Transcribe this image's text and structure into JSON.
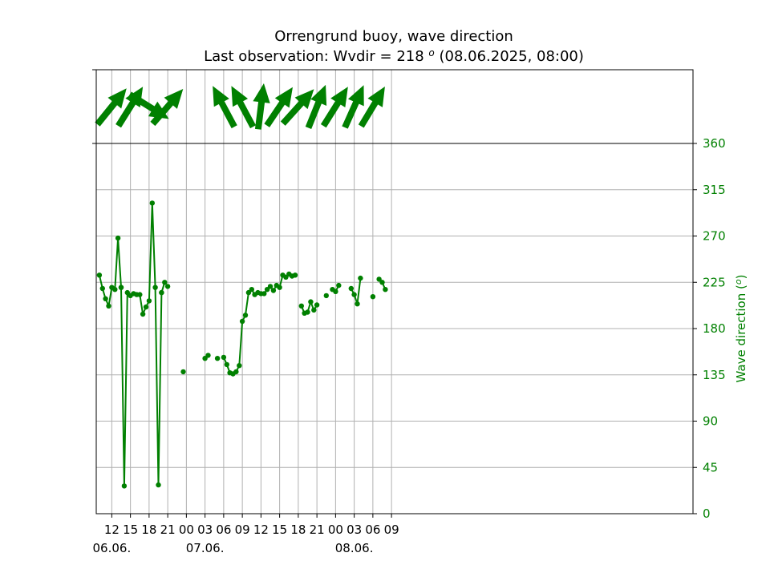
{
  "chart_data": {
    "type": "line",
    "title": "Orrengrund buoy, wave direction",
    "subtitle_prefix": "Last observation: Wvdir = 218 ",
    "subtitle_degree": "o",
    "subtitle_suffix": " (08.06.2025, 08:00)",
    "ylabel": "Wave direction (",
    "ylabel_degree": "o",
    "ylabel_suffix": ")",
    "ylim": [
      0,
      360
    ],
    "x_unit": "hours after 06.06. 00:00",
    "xlim": [
      9.5,
      105.5
    ],
    "y_ticks": [
      0,
      45,
      90,
      135,
      180,
      225,
      270,
      315,
      360
    ],
    "x_ticks": [
      {
        "h": 12,
        "label": "12"
      },
      {
        "h": 15,
        "label": "15"
      },
      {
        "h": 18,
        "label": "18"
      },
      {
        "h": 21,
        "label": "21"
      },
      {
        "h": 24,
        "label": "00"
      },
      {
        "h": 27,
        "label": "03"
      },
      {
        "h": 30,
        "label": "06"
      },
      {
        "h": 33,
        "label": "09"
      },
      {
        "h": 36,
        "label": "12"
      },
      {
        "h": 39,
        "label": "15"
      },
      {
        "h": 42,
        "label": "18"
      },
      {
        "h": 45,
        "label": "21"
      },
      {
        "h": 48,
        "label": "00"
      },
      {
        "h": 51,
        "label": "03"
      },
      {
        "h": 54,
        "label": "06"
      },
      {
        "h": 57,
        "label": "09"
      }
    ],
    "date_labels": [
      {
        "h": 12,
        "label": "06.06."
      },
      {
        "h": 27,
        "label": "07.06."
      },
      {
        "h": 51,
        "label": "08.06."
      }
    ],
    "grid": true,
    "color": "#008000",
    "series": [
      {
        "x": [
          10,
          10.5,
          11,
          11.5,
          12,
          12.5,
          13,
          13.5
        ],
        "y": [
          232,
          219,
          209,
          202,
          220,
          218,
          268,
          220
        ]
      },
      {
        "x": [
          13.5,
          14,
          14.5,
          15,
          15.5,
          16,
          16.5,
          17,
          17.5,
          18,
          18.5,
          19,
          19.5,
          20
        ],
        "y": [
          220,
          27,
          215,
          212,
          214,
          213,
          213,
          194,
          201,
          207,
          302,
          220,
          28,
          215
        ]
      },
      {
        "x": [
          20,
          20.5
        ],
        "y": [
          215,
          225
        ]
      },
      {
        "x": [
          21
        ],
        "y": [
          221
        ]
      },
      {
        "x": [
          23.5
        ],
        "y": [
          138
        ]
      },
      {
        "x": [
          27,
          27.5
        ],
        "y": [
          151,
          154
        ]
      },
      {
        "x": [
          29
        ],
        "y": [
          151
        ]
      },
      {
        "x": [
          30,
          30.5,
          31,
          31.5,
          32,
          32.5,
          33,
          33.5,
          34,
          34.5,
          35,
          35.5,
          36,
          36.5,
          37,
          37.5,
          38,
          38.5,
          39,
          39.5,
          40,
          40.5,
          41,
          41.5
        ],
        "y": [
          152,
          145,
          137,
          136,
          138,
          144,
          187,
          193,
          215,
          218,
          213,
          215,
          214,
          214,
          218,
          221,
          217,
          222,
          220,
          232,
          230,
          233,
          231,
          232
        ]
      },
      {
        "x": [
          42.5,
          43,
          43.5,
          44,
          44.5,
          45
        ],
        "y": [
          202,
          195,
          196,
          206,
          198,
          203
        ]
      },
      {
        "x": [
          46.5
        ],
        "y": [
          212
        ]
      },
      {
        "x": [
          47.5,
          48,
          48.5
        ],
        "y": [
          218,
          216,
          222
        ]
      },
      {
        "x": [
          50.5,
          51,
          51.5,
          52
        ],
        "y": [
          219,
          213,
          204,
          229
        ]
      },
      {
        "x": [
          54
        ],
        "y": [
          211
        ]
      },
      {
        "x": [
          55,
          55.5,
          56
        ],
        "y": [
          228,
          225,
          218
        ]
      }
    ],
    "arrows": [
      {
        "h": 12,
        "dir": 219
      },
      {
        "h": 15,
        "dir": 212
      },
      {
        "h": 18,
        "dir": 302
      },
      {
        "h": 21,
        "dir": 221
      },
      {
        "h": 30,
        "dir": 152
      },
      {
        "h": 33,
        "dir": 152
      },
      {
        "h": 36,
        "dir": 187
      },
      {
        "h": 39,
        "dir": 214
      },
      {
        "h": 42,
        "dir": 222
      },
      {
        "h": 45,
        "dir": 202
      },
      {
        "h": 48,
        "dir": 212
      },
      {
        "h": 51,
        "dir": 204
      },
      {
        "h": 54,
        "dir": 211
      }
    ]
  }
}
